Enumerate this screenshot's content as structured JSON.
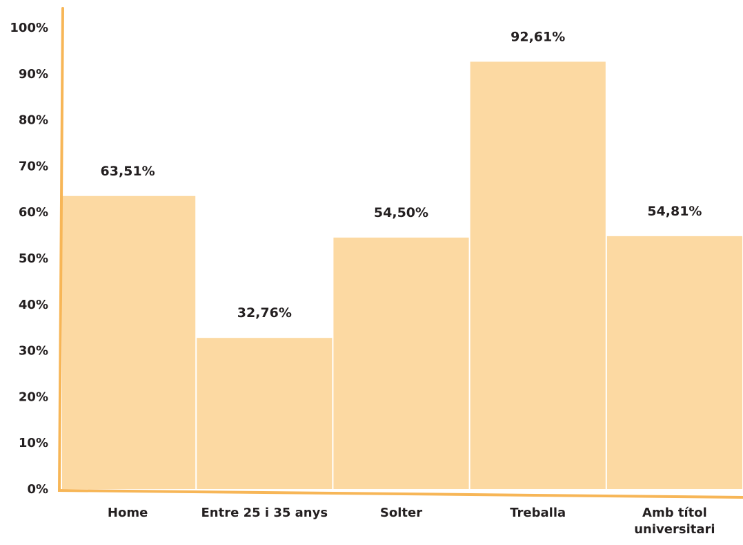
{
  "chart_data": {
    "type": "bar",
    "categories": [
      "Home",
      "Entre 25 i 35 anys",
      "Solter",
      "Treballa",
      "Amb títol universitari"
    ],
    "category_lines": [
      [
        "Home"
      ],
      [
        "Entre 25 i 35 anys"
      ],
      [
        "Solter"
      ],
      [
        "Treballa"
      ],
      [
        "Amb títol",
        "universitari"
      ]
    ],
    "values": [
      63.51,
      32.76,
      54.5,
      92.61,
      54.81
    ],
    "data_labels": [
      "63,51%",
      "32,76%",
      "54,50%",
      "92,61%",
      "54,81%"
    ],
    "yticks": [
      "0%",
      "10%",
      "20%",
      "30%",
      "40%",
      "50%",
      "60%",
      "70%",
      "80%",
      "90%",
      "100%"
    ],
    "ylim": [
      0,
      100
    ],
    "title": "",
    "xlabel": "",
    "ylabel": "",
    "grid": false,
    "colors": {
      "bar": "#fcd9a2",
      "axis": "#f7b657",
      "text": "#231f20",
      "separator": "#ffffff"
    }
  }
}
